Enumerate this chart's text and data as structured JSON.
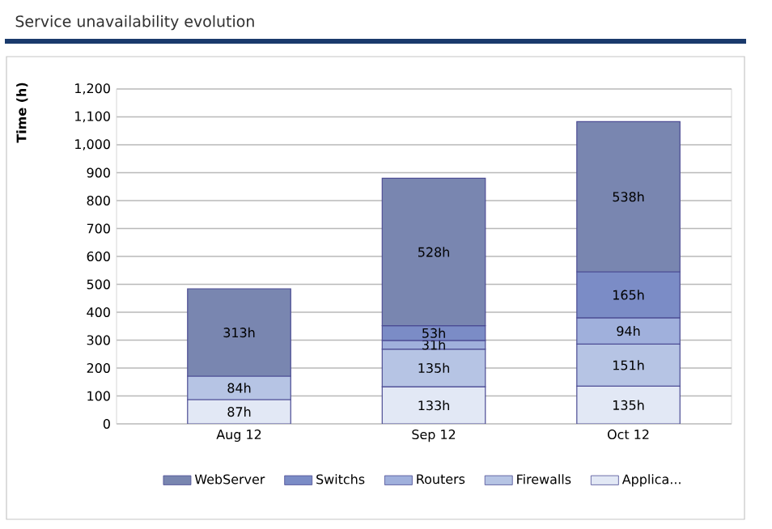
{
  "chart_data": {
    "type": "bar",
    "title": "Service unavailability evolution",
    "ylabel": "Time (h)",
    "categories": [
      "Aug 12",
      "Sep 12",
      "Oct 12"
    ],
    "stacked": true,
    "series": [
      {
        "name": "Applica...",
        "color": "#e2e8f5",
        "values": [
          87,
          133,
          135
        ],
        "value_labels": [
          "87h",
          "133h",
          "135h"
        ]
      },
      {
        "name": "Firewalls",
        "color": "#b6c4e4",
        "values": [
          84,
          135,
          151
        ],
        "value_labels": [
          "84h",
          "135h",
          "151h"
        ]
      },
      {
        "name": "Routers",
        "color": "#a0b0dc",
        "values": [
          null,
          31,
          94
        ],
        "value_labels": [
          null,
          "31h",
          "94h"
        ]
      },
      {
        "name": "Switchs",
        "color": "#7b8cc6",
        "values": [
          null,
          53,
          165
        ],
        "value_labels": [
          null,
          "53h",
          "165h"
        ]
      },
      {
        "name": "WebServer",
        "color": "#7986b0",
        "values": [
          313,
          528,
          538
        ],
        "value_labels": [
          "313h",
          "528h",
          "538h"
        ]
      }
    ],
    "ylim": [
      0,
      1200
    ],
    "yticks": [
      0,
      100,
      200,
      300,
      400,
      500,
      600,
      700,
      800,
      900,
      {
        "value": 1000,
        "label": "1,000"
      },
      {
        "value": 1100,
        "label": "1,100"
      },
      {
        "value": 1200,
        "label": "1,200"
      }
    ],
    "grid": "y",
    "legend": "bottom"
  }
}
